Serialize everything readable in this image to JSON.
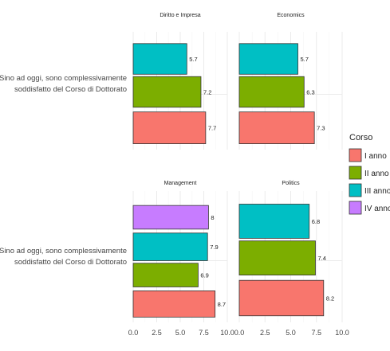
{
  "chart_data": {
    "type": "bar",
    "orientation": "horizontal",
    "y_category": [
      "Sino ad oggi, sono complessivamente",
      "soddisfatto del Corso di Dottorato"
    ],
    "xlim": [
      0,
      10
    ],
    "x_ticks": [
      "0.0",
      "2.5",
      "5.0",
      "7.5",
      "10.0"
    ],
    "grid": true,
    "legend": {
      "title": "Corso",
      "position": "right",
      "entries": [
        {
          "label": "I anno",
          "color": "#F8766D"
        },
        {
          "label": "II anno",
          "color": "#7CAE00"
        },
        {
          "label": "III anno",
          "color": "#00BFC4"
        },
        {
          "label": "IV anno",
          "color": "#C77CFF"
        }
      ]
    },
    "panels": [
      {
        "title": "Diritto e Impresa",
        "bars": [
          {
            "series": "III anno",
            "value": 5.7,
            "label": "5.7"
          },
          {
            "series": "II anno",
            "value": 7.2,
            "label": "7.2"
          },
          {
            "series": "I anno",
            "value": 7.7,
            "label": "7.7"
          }
        ]
      },
      {
        "title": "Economics",
        "bars": [
          {
            "series": "III anno",
            "value": 5.7,
            "label": "5.7"
          },
          {
            "series": "II anno",
            "value": 6.3,
            "label": "6.3"
          },
          {
            "series": "I anno",
            "value": 7.3,
            "label": "7.3"
          }
        ]
      },
      {
        "title": "Management",
        "bars": [
          {
            "series": "IV anno",
            "value": 8.0,
            "label": "8"
          },
          {
            "series": "III anno",
            "value": 7.9,
            "label": "7.9"
          },
          {
            "series": "II anno",
            "value": 6.9,
            "label": "6.9"
          },
          {
            "series": "I anno",
            "value": 8.7,
            "label": "8.7"
          }
        ]
      },
      {
        "title": "Politics",
        "bars": [
          {
            "series": "III anno",
            "value": 6.8,
            "label": "6.8"
          },
          {
            "series": "II anno",
            "value": 7.4,
            "label": "7.4"
          },
          {
            "series": "I anno",
            "value": 8.2,
            "label": "8.2"
          }
        ]
      }
    ]
  }
}
